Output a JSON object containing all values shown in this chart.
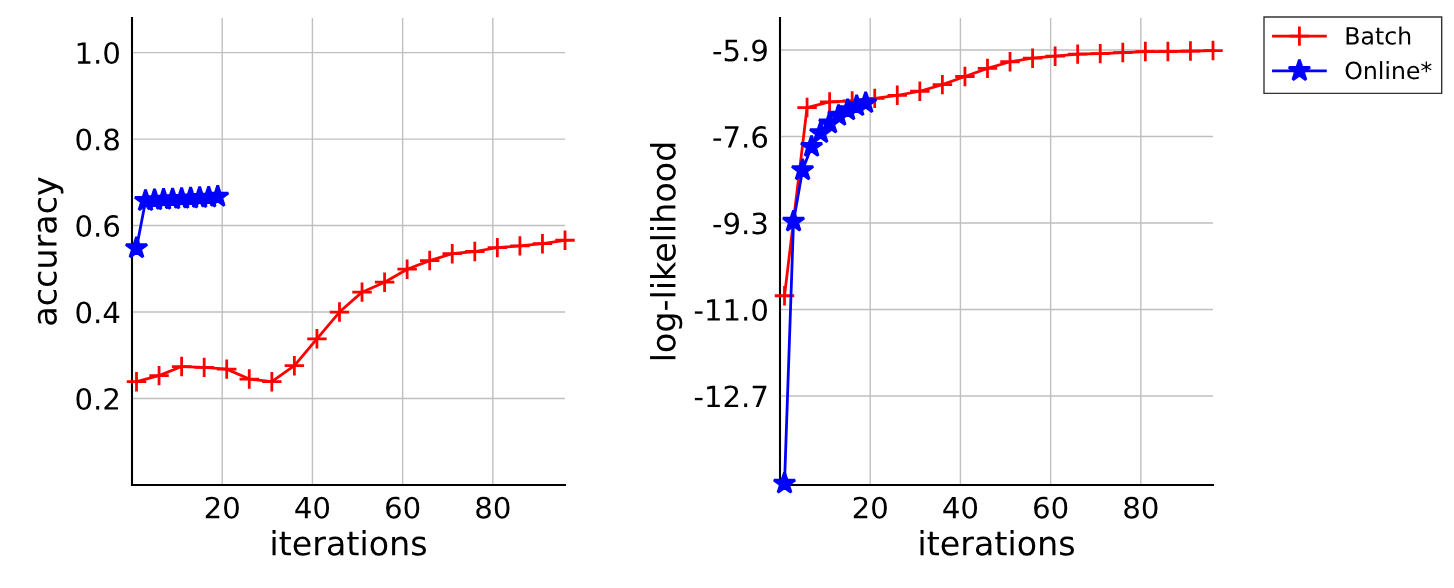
{
  "chart_data": [
    {
      "type": "line",
      "xlabel": "iterations",
      "ylabel": "accuracy",
      "xlim": [
        0,
        96
      ],
      "ylim": [
        0,
        1.08
      ],
      "xticks": [
        20,
        40,
        60,
        80
      ],
      "yticks": [
        {
          "value": 0.2,
          "label": "0.2"
        },
        {
          "value": 0.4,
          "label": "0.4"
        },
        {
          "value": 0.6,
          "label": "0.6"
        },
        {
          "value": 0.8,
          "label": "0.8"
        },
        {
          "value": 1.0,
          "label": "1.0"
        }
      ],
      "grid": true,
      "legend": "top right",
      "series": [
        {
          "name": "Batch",
          "color": "#ff0000",
          "marker": "cross",
          "x": [
            1,
            6,
            11,
            16,
            21,
            26,
            31,
            36,
            41,
            46,
            51,
            56,
            61,
            66,
            71,
            76,
            81,
            86,
            91,
            96
          ],
          "values": [
            0.239,
            0.253,
            0.274,
            0.272,
            0.268,
            0.245,
            0.239,
            0.276,
            0.338,
            0.4,
            0.446,
            0.469,
            0.499,
            0.519,
            0.535,
            0.54,
            0.549,
            0.553,
            0.558,
            0.566
          ]
        },
        {
          "name": "Online*",
          "color": "#0000ff",
          "marker": "star",
          "x": [
            1,
            3,
            5,
            7,
            9,
            11,
            13,
            15,
            17,
            19
          ],
          "values": [
            0.548,
            0.657,
            0.659,
            0.66,
            0.661,
            0.662,
            0.663,
            0.664,
            0.665,
            0.667
          ]
        }
      ]
    },
    {
      "type": "line",
      "xlabel": "iterations",
      "ylabel": "log-likelihood",
      "xlim": [
        0,
        96
      ],
      "ylim": [
        -14.45,
        -5.27
      ],
      "xticks": [
        20,
        40,
        60,
        80
      ],
      "yticks": [
        {
          "value": -12.7,
          "label": "-12.7"
        },
        {
          "value": -11.0,
          "label": "-11.0"
        },
        {
          "value": -9.3,
          "label": "-9.3"
        },
        {
          "value": -7.6,
          "label": "-7.6"
        },
        {
          "value": -5.9,
          "label": "-5.9"
        }
      ],
      "grid": true,
      "series": [
        {
          "color": "#ff0000",
          "marker": "cross",
          "x": [
            1,
            6,
            11,
            16,
            21,
            26,
            31,
            36,
            41,
            46,
            51,
            56,
            61,
            66,
            71,
            76,
            81,
            86,
            91,
            96
          ],
          "values": [
            -10.73,
            -7.03,
            -6.92,
            -6.9,
            -6.85,
            -6.79,
            -6.71,
            -6.58,
            -6.42,
            -6.26,
            -6.13,
            -6.06,
            -6.02,
            -5.98,
            -5.97,
            -5.95,
            -5.93,
            -5.93,
            -5.92,
            -5.91
          ]
        },
        {
          "color": "#0000ff",
          "marker": "star",
          "x": [
            1,
            3,
            5,
            7,
            9,
            11,
            13,
            15,
            17,
            19
          ],
          "values": [
            -14.42,
            -9.27,
            -8.26,
            -7.8,
            -7.53,
            -7.34,
            -7.19,
            -7.08,
            -7.0,
            -6.94
          ]
        }
      ]
    }
  ]
}
